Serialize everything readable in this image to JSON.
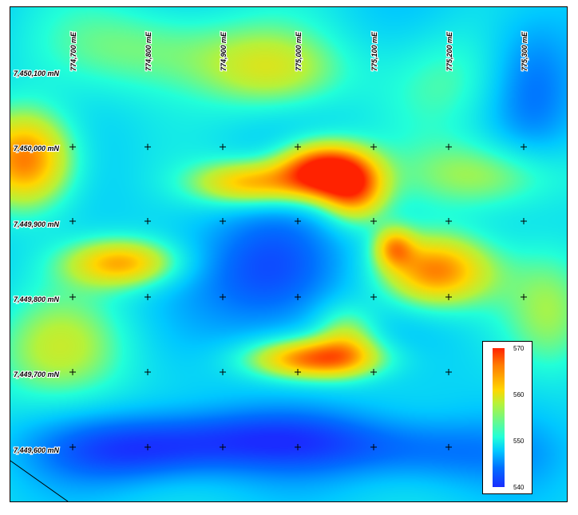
{
  "map": {
    "easting_labels": [
      "774,700 mE",
      "774,800 mE",
      "774,900 mE",
      "775,000 mE",
      "775,100 mE",
      "775,200 mE",
      "775,300 mE"
    ],
    "northing_labels": [
      "7,450,100 mN",
      "7,450,000 mN",
      "7,449,900 mN",
      "7,449,800 mN",
      "7,449,700 mN",
      "7,449,600 mN"
    ]
  },
  "legend": {
    "ticks": [
      "570",
      "560",
      "550",
      "540"
    ],
    "values": [
      570,
      560,
      550,
      540
    ],
    "min": 540,
    "max": 570,
    "color_ramp": [
      "#1a2cff",
      "#0070ff",
      "#00c8ff",
      "#22ffd8",
      "#b6f23a",
      "#ffd600",
      "#ff7a00",
      "#ff2200"
    ]
  }
}
